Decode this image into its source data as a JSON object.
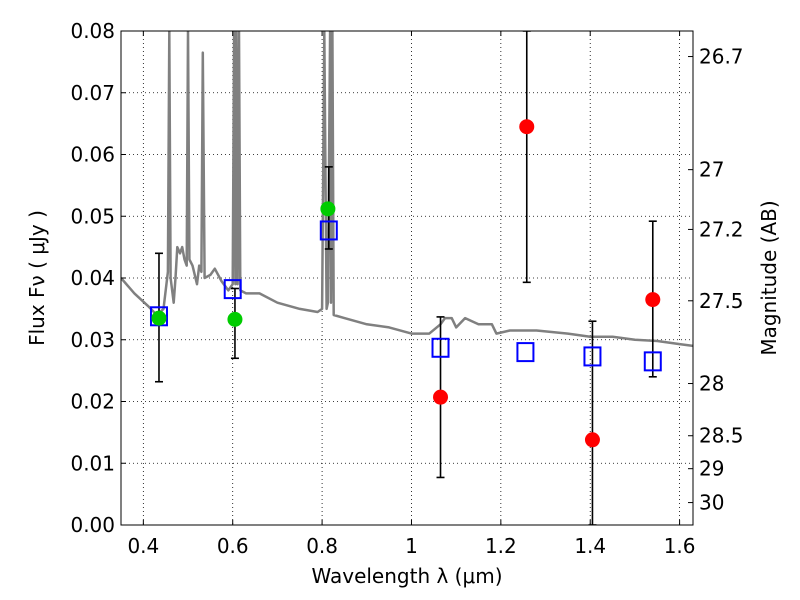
{
  "chart_data": {
    "type": "scatter",
    "xlabel": "Wavelength  λ (μm)",
    "ylabel": "Flux  Fν  ( μJy )",
    "ylabel_right": "Magnitude (AB)",
    "xlim": [
      0.35,
      1.63
    ],
    "ylim": [
      0,
      0.08
    ],
    "grid": true,
    "x_ticks": [
      0.4,
      0.6,
      0.8,
      1.0,
      1.2,
      1.4,
      1.6
    ],
    "x_tick_labels": [
      "0.4",
      "0.6",
      "0.8",
      "1",
      "1.2",
      "1.4",
      "1.6"
    ],
    "y_ticks": [
      0.0,
      0.01,
      0.02,
      0.03,
      0.04,
      0.05,
      0.06,
      0.07,
      0.08
    ],
    "y_tick_labels": [
      "0.00",
      "0.01",
      "0.02",
      "0.03",
      "0.04",
      "0.05",
      "0.06",
      "0.07",
      "0.08"
    ],
    "right_ticks": [
      {
        "label": "26.7",
        "mag": 26.7
      },
      {
        "label": "27",
        "mag": 27.0
      },
      {
        "label": "27.2",
        "mag": 27.2
      },
      {
        "label": "27.5",
        "mag": 27.5
      },
      {
        "label": "28",
        "mag": 28.0
      },
      {
        "label": "28.5",
        "mag": 28.5
      },
      {
        "label": "29",
        "mag": 29.0
      },
      {
        "label": "30",
        "mag": 30.0
      }
    ],
    "series": [
      {
        "marker": "line",
        "color": "#808080",
        "points": [
          [
            0.35,
            0.04
          ],
          [
            0.38,
            0.0375
          ],
          [
            0.41,
            0.0355
          ],
          [
            0.43,
            0.034
          ],
          [
            0.445,
            0.035
          ],
          [
            0.455,
            0.041
          ],
          [
            0.458,
            0.08
          ],
          [
            0.461,
            0.04
          ],
          [
            0.468,
            0.036
          ],
          [
            0.472,
            0.04
          ],
          [
            0.476,
            0.045
          ],
          [
            0.482,
            0.044
          ],
          [
            0.487,
            0.045
          ],
          [
            0.492,
            0.043
          ],
          [
            0.497,
            0.042
          ],
          [
            0.5,
            0.08
          ],
          [
            0.503,
            0.043
          ],
          [
            0.51,
            0.042
          ],
          [
            0.52,
            0.039
          ],
          [
            0.525,
            0.042
          ],
          [
            0.53,
            0.041
          ],
          [
            0.533,
            0.0765
          ],
          [
            0.537,
            0.04
          ],
          [
            0.55,
            0.0405
          ],
          [
            0.56,
            0.0415
          ],
          [
            0.575,
            0.0395
          ],
          [
            0.59,
            0.038
          ],
          [
            0.6,
            0.039
          ],
          [
            0.603,
            0.08
          ],
          [
            0.606,
            0.039
          ],
          [
            0.608,
            0.08
          ],
          [
            0.611,
            0.039
          ],
          [
            0.614,
            0.08
          ],
          [
            0.617,
            0.038
          ],
          [
            0.63,
            0.0375
          ],
          [
            0.66,
            0.0375
          ],
          [
            0.7,
            0.036
          ],
          [
            0.75,
            0.035
          ],
          [
            0.79,
            0.0345
          ],
          [
            0.8,
            0.035
          ],
          [
            0.805,
            0.08
          ],
          [
            0.81,
            0.035
          ],
          [
            0.813,
            0.036
          ],
          [
            0.818,
            0.08
          ],
          [
            0.82,
            0.036
          ],
          [
            0.823,
            0.08
          ],
          [
            0.826,
            0.034
          ],
          [
            0.85,
            0.0335
          ],
          [
            0.9,
            0.0325
          ],
          [
            0.95,
            0.032
          ],
          [
            1.0,
            0.031
          ],
          [
            1.04,
            0.031
          ],
          [
            1.065,
            0.0325
          ],
          [
            1.075,
            0.0335
          ],
          [
            1.09,
            0.0335
          ],
          [
            1.1,
            0.032
          ],
          [
            1.12,
            0.0335
          ],
          [
            1.15,
            0.0325
          ],
          [
            1.18,
            0.0325
          ],
          [
            1.19,
            0.031
          ],
          [
            1.22,
            0.0315
          ],
          [
            1.28,
            0.0315
          ],
          [
            1.35,
            0.031
          ],
          [
            1.4,
            0.0305
          ],
          [
            1.45,
            0.0305
          ],
          [
            1.5,
            0.03
          ],
          [
            1.55,
            0.0298
          ],
          [
            1.6,
            0.0293
          ],
          [
            1.63,
            0.029
          ]
        ]
      },
      {
        "marker": "square",
        "color": "#0000ff",
        "points": [
          [
            0.435,
            0.0338
          ],
          [
            0.6,
            0.0382
          ],
          [
            0.815,
            0.0477
          ],
          [
            1.065,
            0.0287
          ],
          [
            1.255,
            0.028
          ],
          [
            1.405,
            0.0273
          ],
          [
            1.54,
            0.0265
          ]
        ]
      },
      {
        "marker": "circle",
        "color": "#00cc00",
        "points": [
          [
            0.435,
            0.0335
          ],
          [
            0.605,
            0.0333
          ],
          [
            0.813,
            0.0512
          ]
        ],
        "errors": [
          [
            0.435,
            0.0232,
            0.044
          ],
          [
            0.605,
            0.027,
            0.0383
          ],
          [
            0.815,
            0.0447,
            0.058
          ]
        ]
      },
      {
        "marker": "circle",
        "color": "#ff0000",
        "points": [
          [
            1.065,
            0.0207
          ],
          [
            1.258,
            0.0645
          ],
          [
            1.405,
            0.0138
          ],
          [
            1.54,
            0.0365
          ]
        ],
        "errors": [
          [
            1.065,
            0.0077,
            0.0337
          ],
          [
            1.258,
            0.0393,
            0.08
          ],
          [
            1.405,
            0.0,
            0.033
          ],
          [
            1.54,
            0.024,
            0.0492
          ]
        ]
      }
    ]
  }
}
